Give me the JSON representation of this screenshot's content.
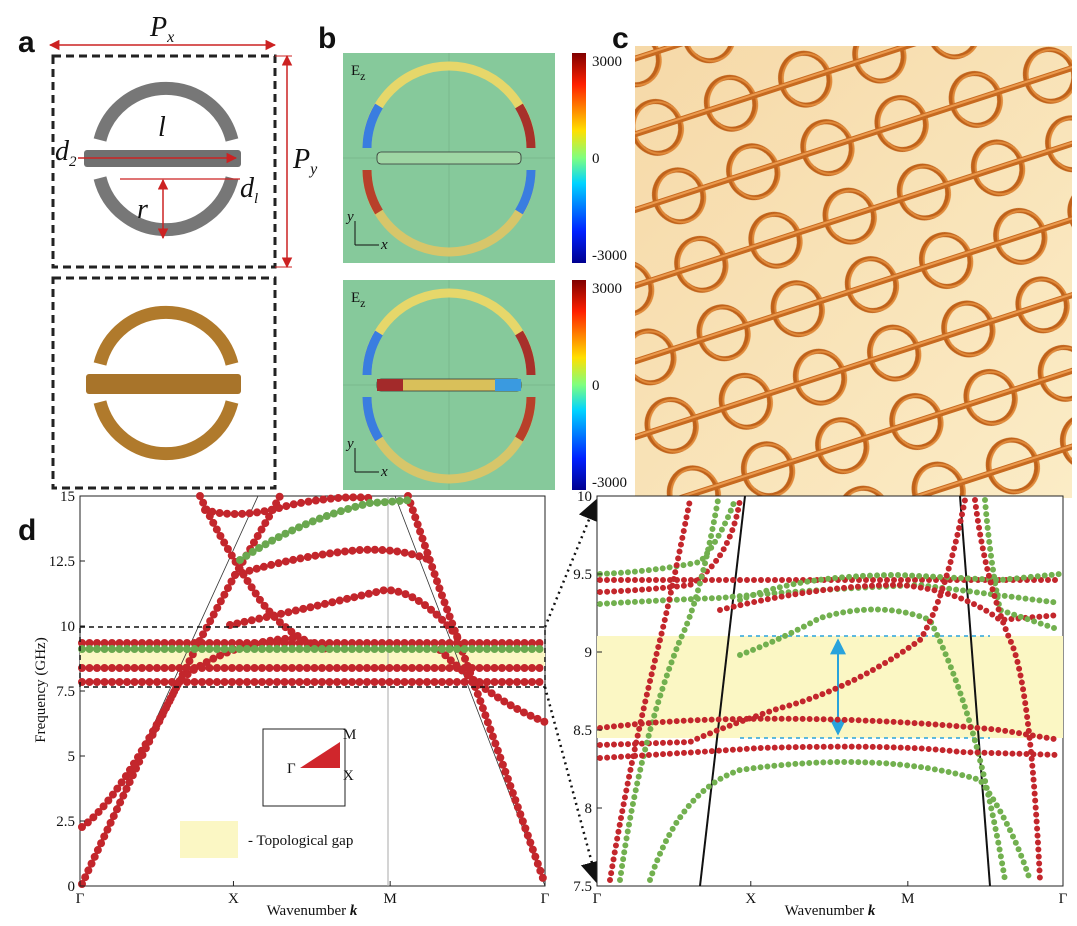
{
  "panel_a": {
    "label": "a",
    "px": "P",
    "px_sub": "x",
    "py": "P",
    "py_sub": "y",
    "l": "l",
    "d2": "d",
    "d2_sub": "2",
    "d1": "d",
    "d1_sub": "l",
    "r": "r"
  },
  "panel_b": {
    "label": "b",
    "maps": [
      {
        "field": "E",
        "field_sub": "z",
        "ticks": [
          "3000",
          "0",
          "-3000"
        ],
        "axis_y": "y",
        "axis_x": "x"
      },
      {
        "field": "E",
        "field_sub": "z",
        "ticks": [
          "3000",
          "0",
          "-3000"
        ],
        "axis_y": "y",
        "axis_x": "x"
      }
    ]
  },
  "panel_c": {
    "label": "c"
  },
  "panel_d": {
    "label": "d",
    "left": {
      "ylabel": "Frequency (GHz)",
      "xlabel": "Wavenumber ",
      "xlabel_k": "k",
      "yticks": [
        "0",
        "2.5",
        "5",
        "7.5",
        "10",
        "12.5",
        "15"
      ],
      "xticks": [
        "Γ",
        "X",
        "M",
        "Γ"
      ],
      "inset": {
        "m": "M",
        "gamma": "Γ",
        "x": "X"
      },
      "legend": "- Topological gap"
    },
    "right": {
      "xlabel": "Wavenumber ",
      "xlabel_k": "k",
      "yticks": [
        "7.5",
        "8",
        "8.5",
        "9",
        "9.5",
        "10"
      ],
      "xticks": [
        "Γ",
        "X",
        "M",
        "Γ"
      ]
    }
  }
}
